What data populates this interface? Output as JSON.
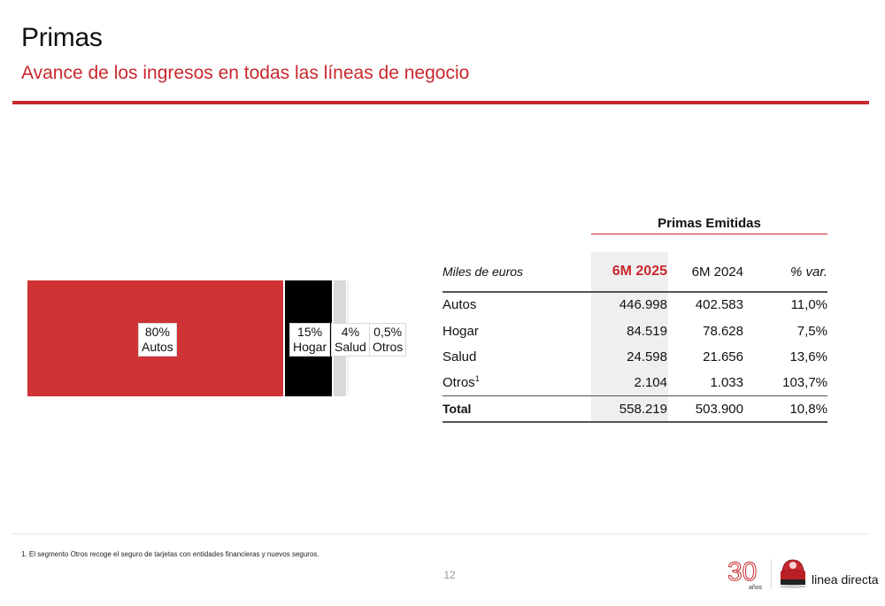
{
  "header": {
    "title": "Primas",
    "subtitle": "Avance de los ingresos en todas las líneas de negocio"
  },
  "chart_data": {
    "type": "bar",
    "orientation": "stacked-horizontal",
    "categories": [
      "Autos",
      "Hogar",
      "Salud",
      "Otros"
    ],
    "values": [
      80,
      15,
      4,
      0.5
    ],
    "value_labels": [
      "80%",
      "15%",
      "4%",
      "0,5%"
    ],
    "colors": [
      "#cf3335",
      "#000000",
      "#d9d9d9",
      "#f0f0f0"
    ]
  },
  "table": {
    "group_header": "Primas Emitidas",
    "unit_label": "Miles de euros",
    "columns": [
      "6M 2025",
      "6M 2024",
      "% var."
    ],
    "rows": [
      {
        "label": "Autos",
        "sup": "",
        "values": [
          "446.998",
          "402.583",
          "11,0%"
        ]
      },
      {
        "label": "Hogar",
        "sup": "",
        "values": [
          "84.519",
          "78.628",
          "7,5%"
        ]
      },
      {
        "label": "Salud",
        "sup": "",
        "values": [
          "24.598",
          "21.656",
          "13,6%"
        ]
      },
      {
        "label": "Otros",
        "sup": "1",
        "values": [
          "2.104",
          "1.033",
          "103,7%"
        ]
      }
    ],
    "total": {
      "label": "Total",
      "values": [
        "558.219",
        "503.900",
        "10,8%"
      ]
    }
  },
  "footer": {
    "footnote": "1.   El segmento Otros recoge el seguro de tarjetas con entidades financieras y nuevos seguros.",
    "page_number": "12",
    "logo_30_number": "30",
    "logo_30_caption": "años",
    "logo_brand": "linea directa"
  },
  "colors": {
    "accent": "#c8282e"
  }
}
